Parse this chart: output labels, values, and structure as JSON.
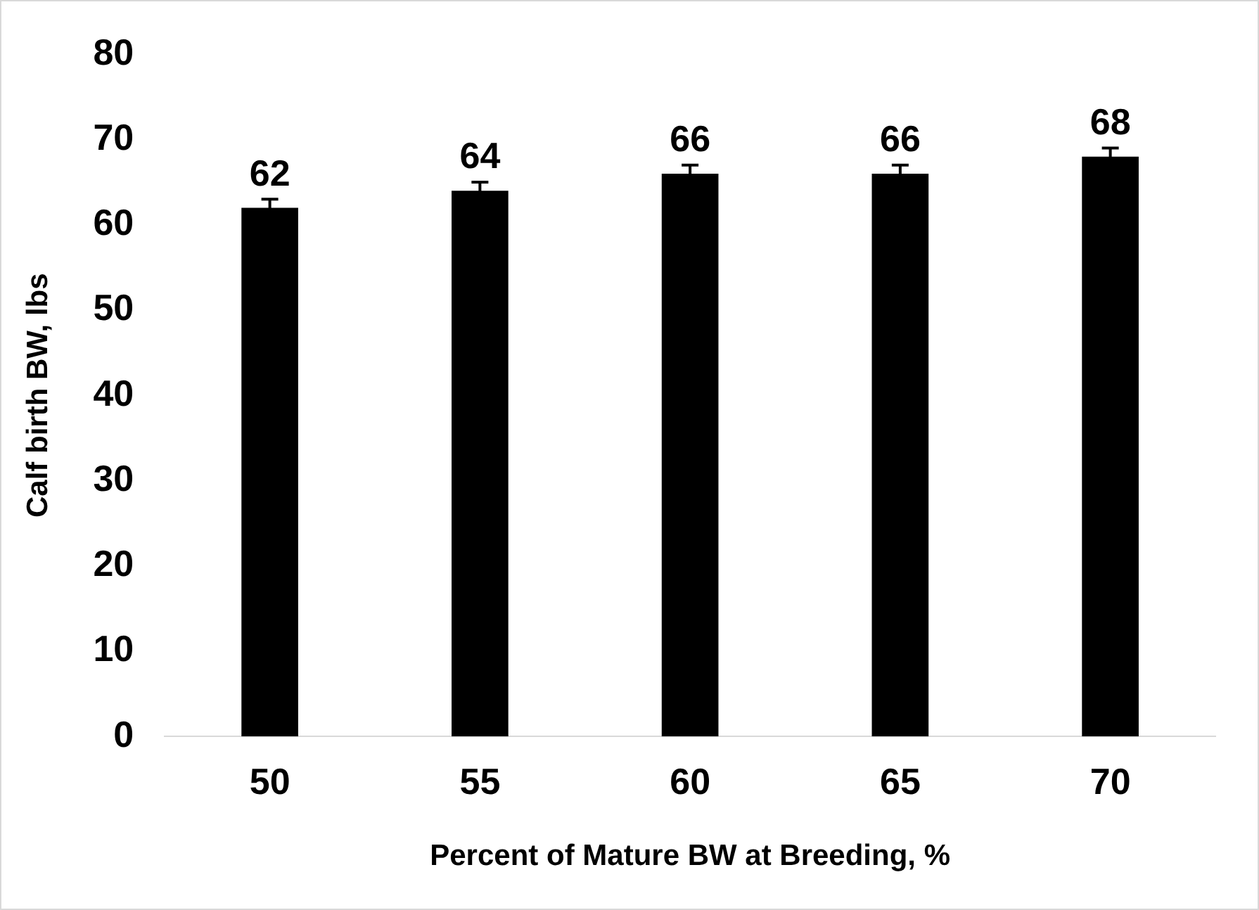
{
  "chart_data": {
    "type": "bar",
    "xlabel": "Percent of Mature BW at Breeding, %",
    "ylabel": "Calf birth BW, lbs",
    "categories": [
      "50",
      "55",
      "60",
      "65",
      "70"
    ],
    "values": [
      62,
      64,
      66,
      66,
      68
    ],
    "errors": [
      1,
      1,
      1,
      1,
      1
    ],
    "color": "#000000",
    "ylim": [
      0,
      80
    ],
    "yticks": [
      0,
      10,
      20,
      30,
      40,
      50,
      60,
      70,
      80
    ],
    "grid": false,
    "legend": false,
    "data_labels": true
  }
}
